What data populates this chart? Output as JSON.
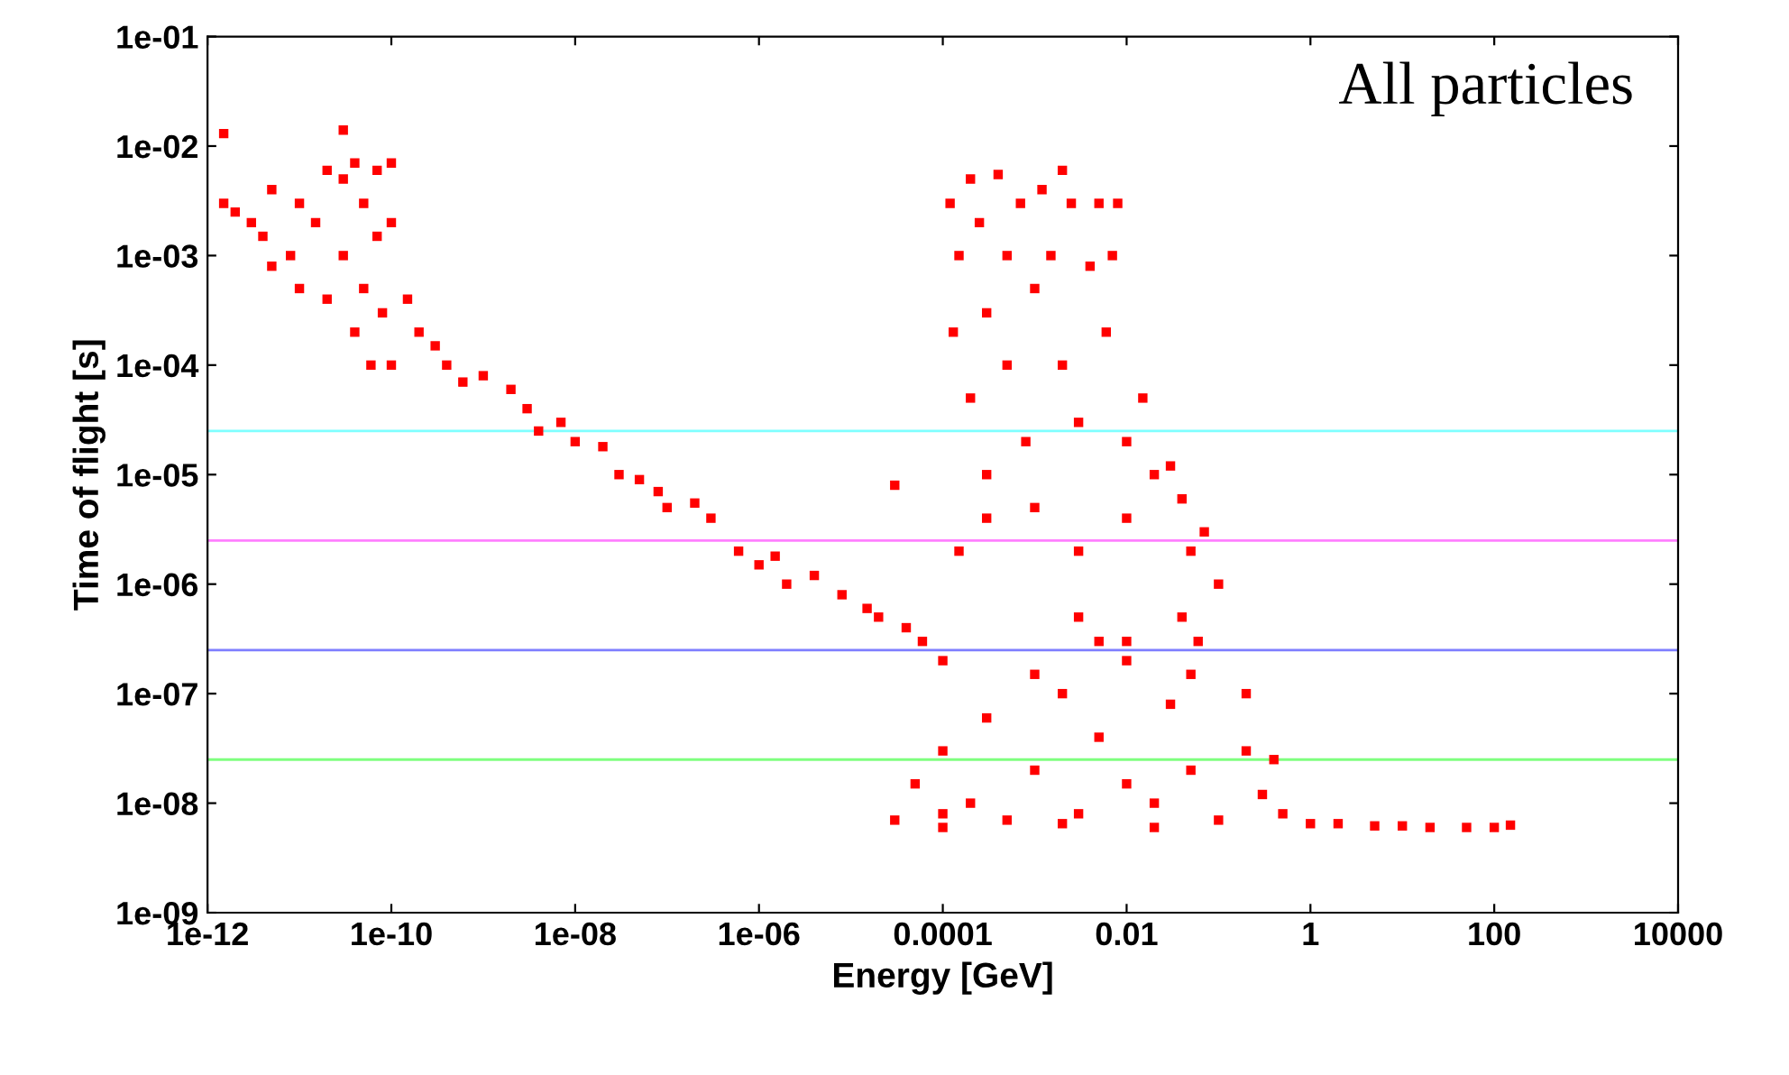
{
  "chart_data": {
    "type": "scatter",
    "xlabel": "Energy [GeV]",
    "ylabel": "Time of flight [s]",
    "log": "xy",
    "marker": "square",
    "grid": false,
    "annotations": [
      "All particles"
    ],
    "xlim": [
      1e-12,
      10000
    ],
    "ylim": [
      1e-09,
      0.1
    ],
    "xticks": [
      {
        "value": 1e-12,
        "label": "1e-12"
      },
      {
        "value": 1e-10,
        "label": "1e-10"
      },
      {
        "value": 1e-08,
        "label": "1e-08"
      },
      {
        "value": 1e-06,
        "label": "1e-06"
      },
      {
        "value": 0.0001,
        "label": "0.0001"
      },
      {
        "value": 0.01,
        "label": "0.01"
      },
      {
        "value": 1,
        "label": "1"
      },
      {
        "value": 100,
        "label": "100"
      },
      {
        "value": 10000,
        "label": "10000"
      }
    ],
    "yticks": [
      {
        "value": 1e-09,
        "label": "1e-09"
      },
      {
        "value": 1e-08,
        "label": "1e-08"
      },
      {
        "value": 1e-07,
        "label": "1e-07"
      },
      {
        "value": 1e-06,
        "label": "1e-06"
      },
      {
        "value": 1e-05,
        "label": "1e-05"
      },
      {
        "value": 0.0001,
        "label": "1e-04"
      },
      {
        "value": 0.001,
        "label": "1e-03"
      },
      {
        "value": 0.01,
        "label": "1e-02"
      },
      {
        "value": 0.1,
        "label": "1e-01"
      }
    ],
    "ref_lines": [
      {
        "axis": "y",
        "value": 2.5e-05,
        "color": "#7fffff"
      },
      {
        "axis": "y",
        "value": 2.5e-06,
        "color": "#ff7fff"
      },
      {
        "axis": "y",
        "value": 2.5e-07,
        "color": "#7f7fff"
      },
      {
        "axis": "y",
        "value": 2.5e-08,
        "color": "#7fff7f"
      }
    ],
    "series": [
      {
        "color": "#ff0000",
        "x": [
          1.5e-12,
          1.5e-12,
          2e-12,
          3e-12,
          4e-12,
          5e-12,
          5e-12,
          8e-12,
          1e-11,
          1e-11,
          1.5e-11,
          2e-11,
          2e-11,
          3e-11,
          3e-11,
          3e-11,
          4e-11,
          4e-11,
          5e-11,
          5e-11,
          6e-11,
          7e-11,
          7e-11,
          8e-11,
          1e-10,
          1e-10,
          1e-10,
          1.5e-10,
          2e-10,
          3e-10,
          4e-10,
          6e-10,
          1e-09,
          2e-09,
          3e-09,
          4e-09,
          7e-09,
          1e-08,
          2e-08,
          3e-08,
          5e-08,
          8e-08,
          1e-07,
          2e-07,
          3e-07,
          6e-07,
          1e-06,
          1.5e-06,
          2e-06,
          4e-06,
          8e-06,
          1.5e-05,
          2e-05,
          3e-05,
          4e-05,
          6e-05,
          0.0001,
          0.00012,
          0.00015,
          0.00013,
          0.0002,
          0.0002,
          0.00025,
          0.0003,
          0.0003,
          0.0004,
          0.0005,
          0.0005,
          0.0007,
          0.0008,
          0.001,
          0.0012,
          0.0015,
          0.002,
          0.002,
          0.0025,
          0.003,
          0.004,
          0.005,
          0.006,
          0.007,
          0.008,
          0.01,
          0.015,
          0.02,
          0.03,
          0.04,
          0.05,
          0.07,
          0.1,
          0.04,
          0.06,
          0.00015,
          0.0003,
          0.001,
          0.003,
          0.01,
          0.003,
          0.01,
          3e-05,
          5e-05,
          0.0001,
          0.0001,
          0.0002,
          0.0003,
          0.0005,
          0.001,
          0.002,
          0.003,
          0.005,
          0.01,
          0.02,
          0.03,
          0.05,
          0.1,
          0.2,
          0.3,
          0.4,
          0.5,
          0.2,
          0.05,
          0.01,
          0.005,
          0.001,
          0.0001,
          0.002,
          0.02,
          1,
          2,
          5,
          10,
          20,
          50,
          100,
          150
        ],
        "values": [
          0.013,
          0.003,
          0.0025,
          0.002,
          0.0015,
          0.0008,
          0.004,
          0.001,
          0.0005,
          0.003,
          0.002,
          0.006,
          0.0004,
          0.014,
          0.005,
          0.001,
          0.0002,
          0.007,
          0.003,
          0.0005,
          0.0001,
          0.006,
          0.0015,
          0.0003,
          0.002,
          0.007,
          0.0001,
          0.0004,
          0.0002,
          0.00015,
          0.0001,
          7e-05,
          8e-05,
          6e-05,
          4e-05,
          2.5e-05,
          3e-05,
          2e-05,
          1.8e-05,
          1e-05,
          9e-06,
          7e-06,
          5e-06,
          5.5e-06,
          4e-06,
          2e-06,
          1.5e-06,
          1.8e-06,
          1e-06,
          1.2e-06,
          8e-07,
          6e-07,
          5e-07,
          8e-06,
          4e-07,
          3e-07,
          2e-07,
          0.003,
          0.001,
          0.0002,
          0.005,
          5e-05,
          0.002,
          0.0003,
          1e-05,
          0.0055,
          0.001,
          0.0001,
          0.003,
          2e-05,
          0.0005,
          0.004,
          0.001,
          0.006,
          0.0001,
          0.003,
          3e-05,
          0.0008,
          0.003,
          0.0002,
          0.001,
          0.003,
          2e-05,
          5e-05,
          1e-05,
          1.2e-05,
          6e-06,
          2e-06,
          3e-06,
          1e-06,
          5e-07,
          3e-07,
          2e-06,
          4e-06,
          5e-06,
          2e-06,
          4e-06,
          5e-07,
          3e-07,
          7e-09,
          1.5e-08,
          6e-09,
          3e-08,
          1e-08,
          6e-08,
          7e-09,
          2e-08,
          1e-07,
          8e-09,
          4e-08,
          1.5e-08,
          6e-09,
          8e-08,
          2e-08,
          7e-09,
          3e-08,
          1.2e-08,
          2.5e-08,
          8e-09,
          1e-07,
          1.5e-07,
          2e-07,
          3e-07,
          1.5e-07,
          8e-09,
          6.5e-09,
          1e-08,
          6.5e-09,
          6.5e-09,
          6.2e-09,
          6.2e-09,
          6e-09,
          6e-09,
          6e-09,
          6.3e-09
        ]
      }
    ]
  }
}
